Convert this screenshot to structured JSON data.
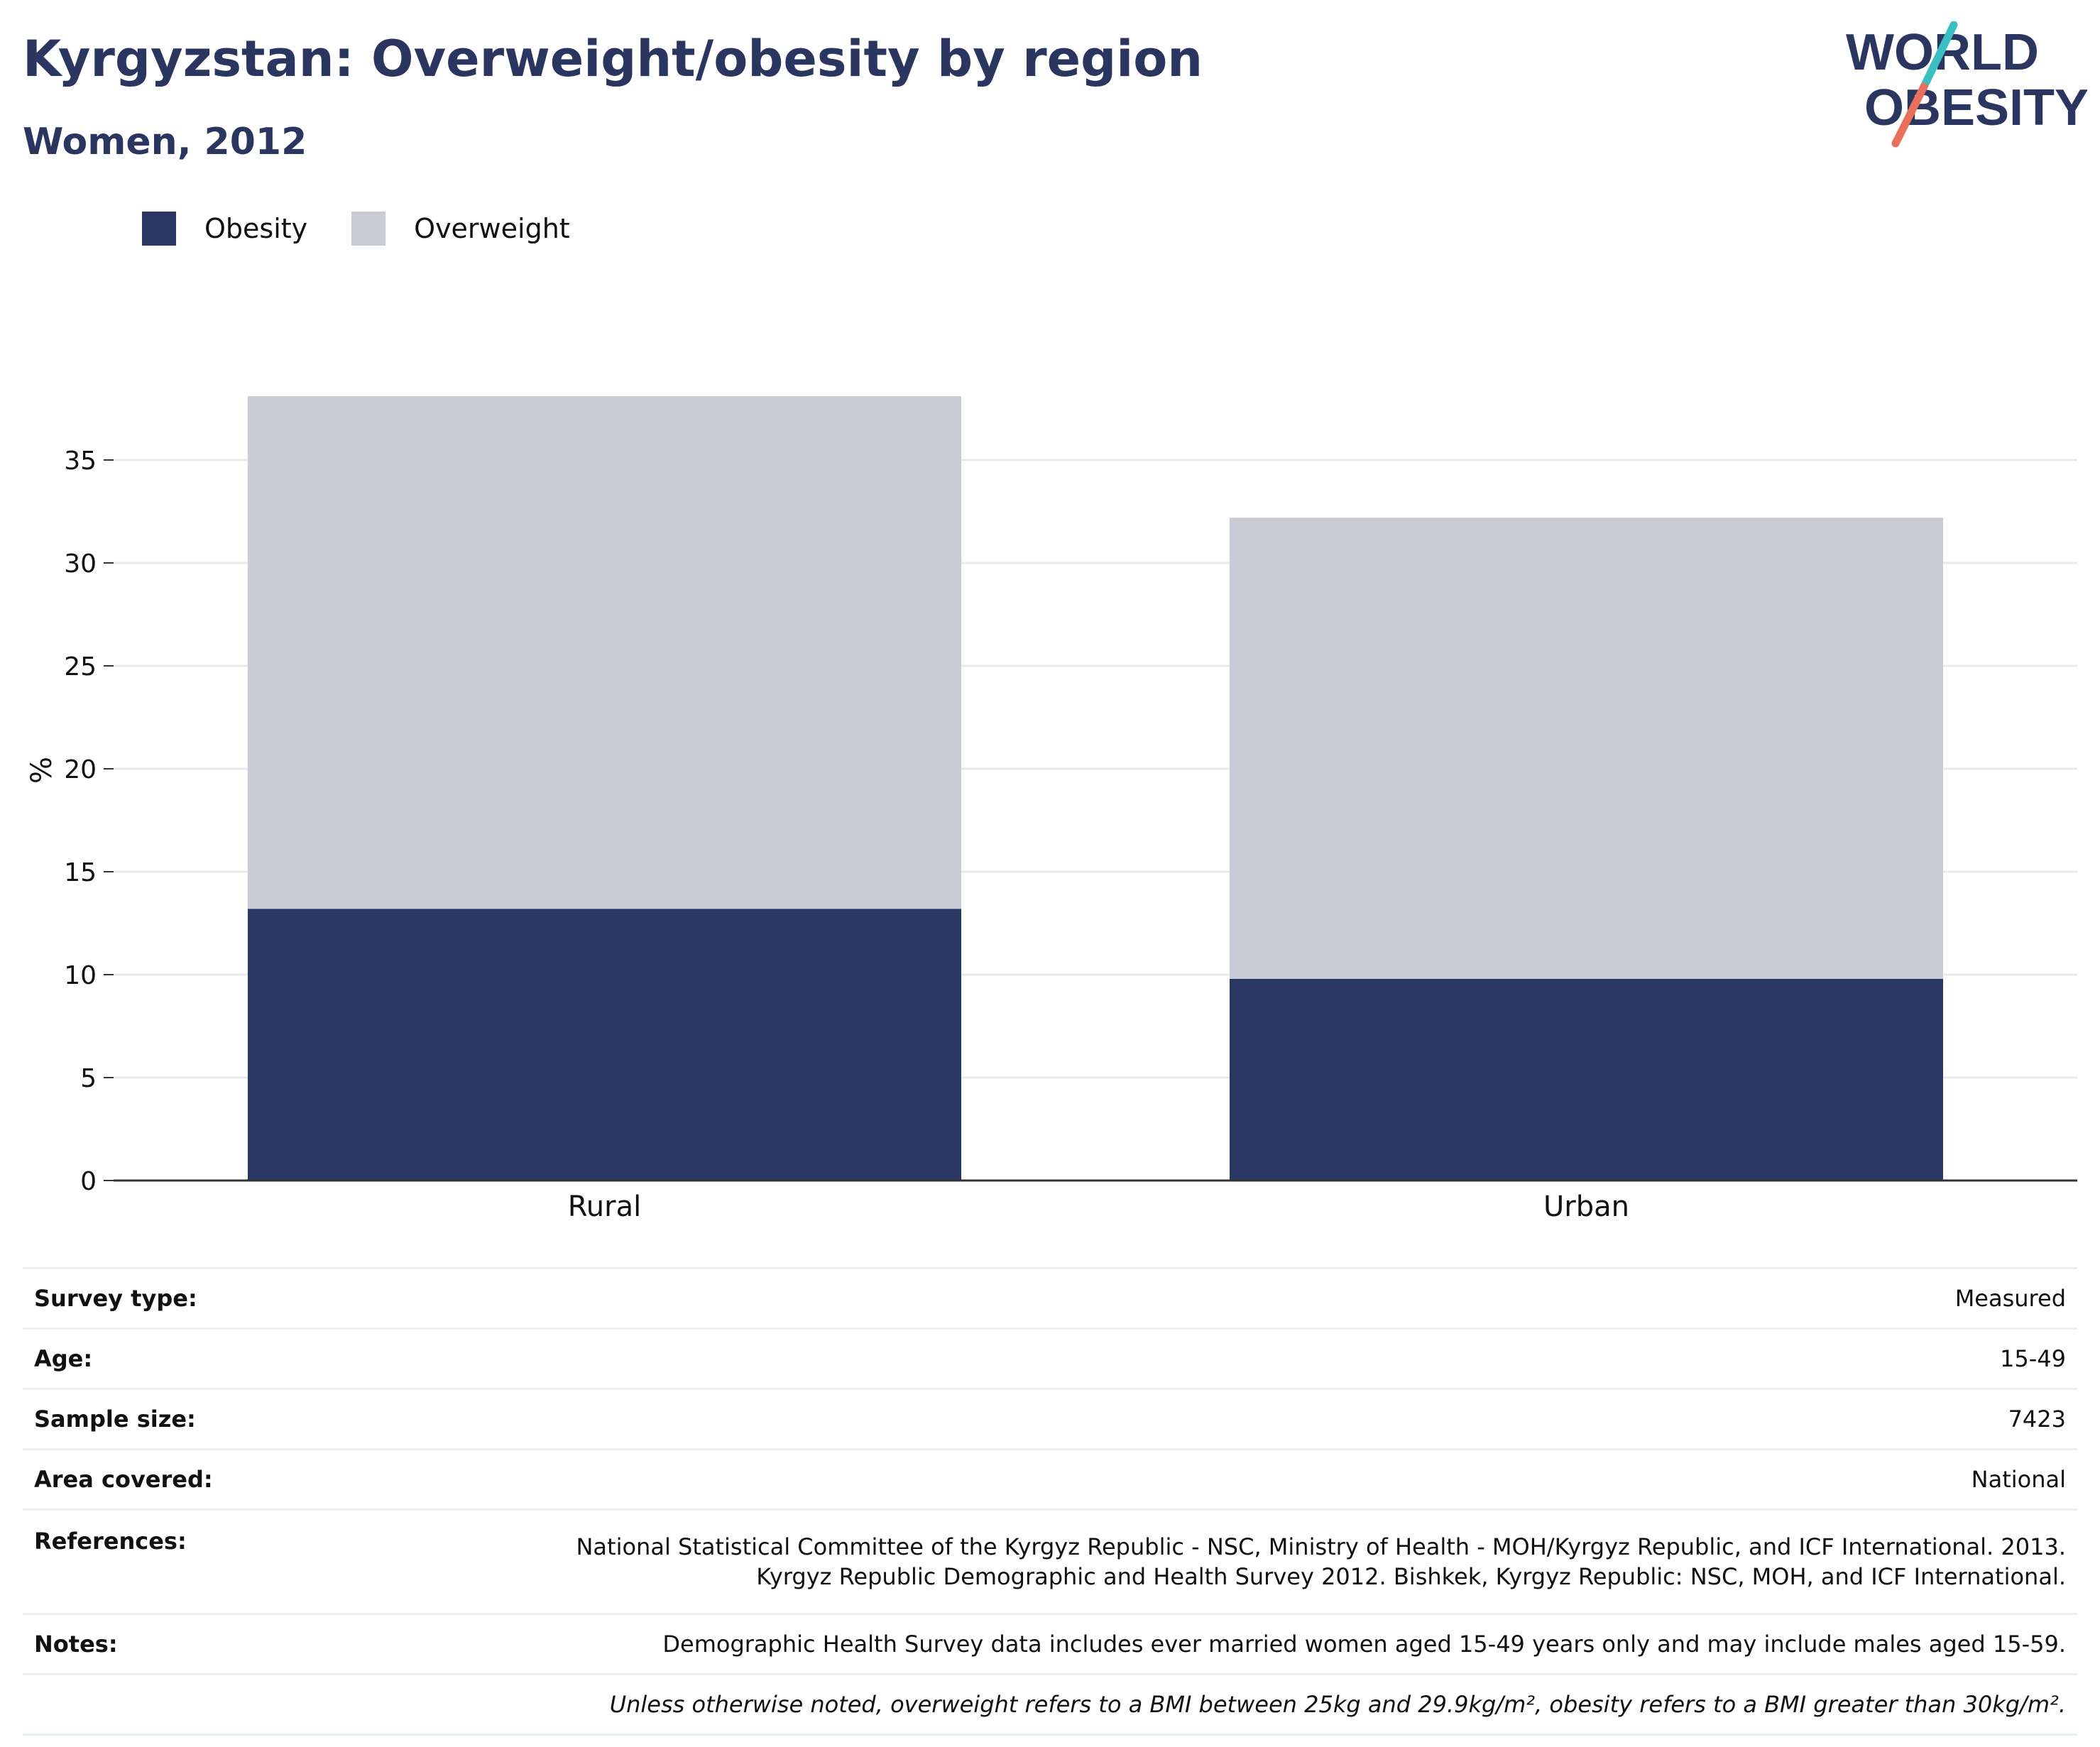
{
  "header": {
    "title": "Kyrgyzstan: Overweight/obesity by region",
    "subtitle": "Women, 2012"
  },
  "logo": {
    "line1": "WORLD",
    "line2": "OBESITY",
    "colors": {
      "text": "#2a365f",
      "slash_top": "#3bbfc2",
      "slash_bottom": "#e9705b"
    }
  },
  "legend": {
    "obesity": "Obesity",
    "overweight": "Overweight"
  },
  "colors": {
    "obesity": "#2a3763",
    "overweight": "#c9cbd6",
    "gridline": "#e8e9eb",
    "axis": "#333333"
  },
  "chart_data": {
    "type": "bar",
    "stacked": true,
    "categories": [
      "Rural",
      "Urban"
    ],
    "series": [
      {
        "name": "Obesity",
        "values": [
          13.2,
          9.8
        ]
      },
      {
        "name": "Overweight",
        "values": [
          24.9,
          22.4
        ]
      }
    ],
    "title": "Kyrgyzstan: Overweight/obesity by region",
    "subtitle": "Women, 2012",
    "xlabel": "",
    "ylabel": "%",
    "ylim": [
      0,
      38
    ],
    "yticks": [
      0,
      5,
      10,
      15,
      20,
      25,
      30,
      35
    ],
    "grid": true,
    "legend_position": "top-left"
  },
  "meta": {
    "survey_type": {
      "label": "Survey type:",
      "value": "Measured"
    },
    "age": {
      "label": "Age:",
      "value": "15-49"
    },
    "sample_size": {
      "label": "Sample size:",
      "value": "7423"
    },
    "area_covered": {
      "label": "Area covered:",
      "value": "National"
    },
    "references": {
      "label": "References:",
      "line1": "National Statistical Committee of the Kyrgyz Republic - NSC, Ministry of Health - MOH/Kyrgyz Republic, and ICF International. 2013.",
      "line2": "Kyrgyz Republic Demographic and Health Survey 2012. Bishkek, Kyrgyz Republic: NSC, MOH, and ICF International."
    },
    "notes": {
      "label": "Notes:",
      "value": "Demographic Health Survey data includes ever married women aged 15-49 years only and may include males aged 15-59."
    },
    "footnote": "Unless otherwise noted, overweight refers to a BMI between 25kg and 29.9kg/m², obesity refers to a BMI greater than 30kg/m²."
  }
}
